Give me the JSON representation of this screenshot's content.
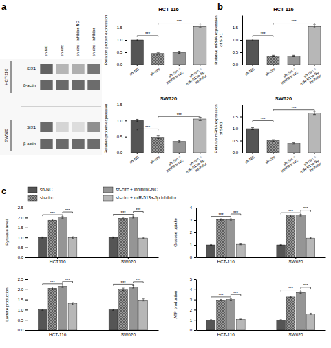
{
  "chart_data": [
    {
      "type": "heatmap",
      "panel": "a",
      "categories": [
        "sh-NC",
        "sh-circ",
        "sh-circ + inhibitor-NC",
        "sh-circ + inhibitor"
      ],
      "series": [
        {
          "group": "HCT-116",
          "name": "SIX1",
          "values": [
            0.82,
            0.38,
            0.42,
            0.72
          ]
        },
        {
          "group": "HCT-116",
          "name": "β-actin",
          "values": [
            0.8,
            0.78,
            0.78,
            0.77
          ]
        },
        {
          "group": "SW620",
          "name": "SIX1",
          "values": [
            0.78,
            0.22,
            0.18,
            0.58
          ]
        },
        {
          "group": "SW620",
          "name": "β-actin",
          "values": [
            0.8,
            0.78,
            0.78,
            0.77
          ]
        }
      ]
    },
    {
      "type": "bar",
      "title": "HCT-116",
      "ylabel": "Relation protein expression",
      "categories": [
        "sh-NC",
        "sh-circ",
        "sh-circ +\ninhibitor-NC",
        "sh-circ +\nmiR-513a-5p\ninhibitor"
      ],
      "values": [
        1.0,
        0.45,
        0.5,
        1.55
      ],
      "errors": [
        0.04,
        0.03,
        0.04,
        0.05
      ],
      "colors": [
        "#555555",
        "#999999",
        "#bbbbbb",
        "#e8e8e8"
      ],
      "ylim": [
        0,
        2.0
      ],
      "yticks": [
        {
          "value": 0.0,
          "label": "0.0"
        },
        0.5,
        {
          "value": 1.0,
          "label": "1.0"
        },
        1.5
      ],
      "annotations": [
        {
          "text": "***",
          "from": 0,
          "to": 1,
          "y": 1.12,
          "height": 0.05
        },
        {
          "text": "***",
          "from": 1,
          "to": 3,
          "y": 1.62,
          "height": 0.06
        }
      ]
    },
    {
      "type": "bar",
      "title": "SW620",
      "ylabel": "Relation protein expression",
      "categories": [
        "sh-NC",
        "sh-circ",
        "sh-circ +\ninhibitor-NC",
        "sh-circ +\nmiR-513a-5p\ninhibitor"
      ],
      "values": [
        1.0,
        0.48,
        0.35,
        1.05
      ],
      "errors": [
        0.04,
        0.04,
        0.03,
        0.05
      ],
      "colors": [
        "#555555",
        "#999999",
        "#bbbbbb",
        "#e8e8e8"
      ],
      "ylim": [
        0,
        1.5
      ],
      "yticks": [
        {
          "value": 0.0,
          "label": "0.0"
        },
        0.5,
        {
          "value": 1.0,
          "label": "1.0"
        },
        1.5
      ],
      "annotations": [
        {
          "text": "***",
          "from": 0,
          "to": 1,
          "y": 0.7,
          "height": 0.04
        },
        {
          "text": "***",
          "from": 1,
          "to": 3,
          "y": 1.08,
          "height": 0.05
        }
      ]
    },
    {
      "type": "bar",
      "panel": "b",
      "title": "HCT-116",
      "ylabel": "Relative mRNA expression\nof SIX1",
      "categories": [
        "sh-NC",
        "sh-circ",
        "sh-circ +\ninhibitor-NC",
        "sh-circ +\nmiR-513a-5p\ninhibitor"
      ],
      "values": [
        1.0,
        0.35,
        0.35,
        1.55
      ],
      "errors": [
        0.04,
        0.03,
        0.03,
        0.06
      ],
      "colors": [
        "#555555",
        "#999999",
        "#bbbbbb",
        "#e8e8e8"
      ],
      "ylim": [
        0,
        2.0
      ],
      "yticks": [
        {
          "value": 0.0,
          "label": "0.0"
        },
        0.5,
        {
          "value": 1.0,
          "label": "1.0"
        },
        1.5
      ],
      "annotations": [
        {
          "text": "***",
          "from": 0,
          "to": 1,
          "y": 1.12,
          "height": 0.05
        },
        {
          "text": "***",
          "from": 1,
          "to": 3,
          "y": 1.62,
          "height": 0.06
        }
      ]
    },
    {
      "type": "bar",
      "title": "SW620",
      "ylabel": "Relative mRNA expression\nof SIX1",
      "categories": [
        "sh-NC",
        "sh-circ",
        "sh-circ +\ninhibitor-NC",
        "sh-circ +\nmiR-513a-5p\ninhibitor"
      ],
      "values": [
        1.0,
        0.5,
        0.38,
        1.65
      ],
      "errors": [
        0.04,
        0.04,
        0.03,
        0.07
      ],
      "colors": [
        "#555555",
        "#999999",
        "#bbbbbb",
        "#e8e8e8"
      ],
      "ylim": [
        0,
        2.0
      ],
      "yticks": [
        {
          "value": 0.0,
          "label": "0.0"
        },
        0.5,
        {
          "value": 1.0,
          "label": "1.0"
        },
        1.5
      ],
      "annotations": [
        {
          "text": "***",
          "from": 0,
          "to": 1,
          "y": 1.28,
          "height": 0.05
        },
        {
          "text": "***",
          "from": 1,
          "to": 3,
          "y": 1.72,
          "height": 0.06
        }
      ]
    },
    {
      "type": "bar",
      "panel": "c",
      "legend": "top",
      "ylabel": "Pyruvate level",
      "categories": [
        "HCT116",
        "SW620"
      ],
      "series": [
        {
          "name": "sh-NC",
          "color": "#555555",
          "values": [
            1.0,
            1.0
          ],
          "errors": [
            0.03,
            0.03
          ]
        },
        {
          "name": "sh-circ",
          "color": "#999999",
          "values": [
            1.87,
            1.97
          ],
          "errors": [
            0.05,
            0.05
          ]
        },
        {
          "name": "sh-circ + inhibitor-NC",
          "color": "#bbbbbb",
          "values": [
            2.02,
            2.03
          ],
          "errors": [
            0.05,
            0.05
          ]
        },
        {
          "name": "sh-circ + miR-513a-5p inhibitor",
          "color": "#e8e8e8",
          "values": [
            1.0,
            0.97
          ],
          "errors": [
            0.04,
            0.04
          ]
        }
      ],
      "ylim": [
        0,
        2.5
      ],
      "yticks": [
        {
          "value": 0.0,
          "label": "0.0"
        },
        0.5,
        {
          "value": 1.0,
          "label": "1.0"
        },
        1.5,
        {
          "value": 2.0,
          "label": "2.0"
        },
        2.5
      ],
      "annotations": [
        {
          "text": "***",
          "category": 0,
          "from": 0,
          "to": 2,
          "y": 2.08,
          "height": 0.07
        },
        {
          "text": "***",
          "category": 0,
          "from": 2,
          "to": 3,
          "y": 2.22,
          "height": 0.07
        },
        {
          "text": "***",
          "category": 1,
          "from": 0,
          "to": 2,
          "y": 2.1,
          "height": 0.07
        },
        {
          "text": "***",
          "category": 1,
          "from": 2,
          "to": 3,
          "y": 2.24,
          "height": 0.07
        }
      ]
    },
    {
      "type": "bar",
      "ylabel": "Glucose uptake",
      "categories": [
        "HCT-116",
        "SW620"
      ],
      "series": [
        {
          "color": "#555555",
          "values": [
            1.0,
            1.0
          ],
          "errors": [
            0.03,
            0.03
          ]
        },
        {
          "color": "#999999",
          "values": [
            3.05,
            3.35
          ],
          "errors": [
            0.06,
            0.07
          ]
        },
        {
          "color": "#bbbbbb",
          "values": [
            3.05,
            3.4
          ],
          "errors": [
            0.06,
            0.07
          ]
        },
        {
          "color": "#e8e8e8",
          "values": [
            1.05,
            1.55
          ],
          "errors": [
            0.04,
            0.06
          ]
        }
      ],
      "ylim": [
        0,
        4.0
      ],
      "yticks": [
        0,
        1,
        2,
        3,
        4
      ],
      "annotations": [
        {
          "text": "***",
          "category": 0,
          "from": 0,
          "to": 2,
          "y": 3.18,
          "height": 0.12
        },
        {
          "text": "***",
          "category": 0,
          "from": 2,
          "to": 3,
          "y": 3.38,
          "height": 0.12
        },
        {
          "text": "***",
          "category": 1,
          "from": 0,
          "to": 2,
          "y": 3.48,
          "height": 0.12
        },
        {
          "text": "***",
          "category": 1,
          "from": 2,
          "to": 3,
          "y": 3.68,
          "height": 0.12
        }
      ]
    },
    {
      "type": "bar",
      "ylabel": "Lactate production",
      "categories": [
        "HCT-116",
        "SW620"
      ],
      "series": [
        {
          "color": "#555555",
          "values": [
            1.0,
            1.0
          ],
          "errors": [
            0.03,
            0.03
          ]
        },
        {
          "color": "#999999",
          "values": [
            2.05,
            2.0
          ],
          "errors": [
            0.06,
            0.06
          ]
        },
        {
          "color": "#bbbbbb",
          "values": [
            2.15,
            2.12
          ],
          "errors": [
            0.06,
            0.06
          ]
        },
        {
          "color": "#e8e8e8",
          "values": [
            1.3,
            1.48
          ],
          "errors": [
            0.05,
            0.05
          ]
        }
      ],
      "ylim": [
        0,
        2.5
      ],
      "yticks": [
        {
          "value": 0.0,
          "label": "0.0"
        },
        0.5,
        {
          "value": 1.0,
          "label": "1.0"
        },
        1.5,
        {
          "value": 2.0,
          "label": "2.0"
        },
        2.5
      ],
      "annotations": [
        {
          "text": "***",
          "category": 0,
          "from": 0,
          "to": 2,
          "y": 2.2,
          "height": 0.07
        },
        {
          "text": "***",
          "category": 0,
          "from": 2,
          "to": 3,
          "y": 2.32,
          "height": 0.07
        },
        {
          "text": "***",
          "category": 1,
          "from": 0,
          "to": 2,
          "y": 2.18,
          "height": 0.07
        },
        {
          "text": "***",
          "category": 1,
          "from": 2,
          "to": 3,
          "y": 2.3,
          "height": 0.07
        }
      ]
    },
    {
      "type": "bar",
      "ylabel": "ATP production",
      "categories": [
        "HCT-116",
        "SW620"
      ],
      "series": [
        {
          "color": "#555555",
          "values": [
            1.0,
            1.0
          ],
          "errors": [
            0.03,
            0.03
          ]
        },
        {
          "color": "#999999",
          "values": [
            2.95,
            3.25
          ],
          "errors": [
            0.06,
            0.07
          ]
        },
        {
          "color": "#bbbbbb",
          "values": [
            3.0,
            3.7
          ],
          "errors": [
            0.06,
            0.08
          ]
        },
        {
          "color": "#e8e8e8",
          "values": [
            1.05,
            1.6
          ],
          "errors": [
            0.04,
            0.06
          ]
        }
      ],
      "ylim": [
        0,
        5.0
      ],
      "yticks": [
        0,
        1,
        2,
        3,
        4,
        5
      ],
      "annotations": [
        {
          "text": "***",
          "category": 0,
          "from": 0,
          "to": 2,
          "y": 3.1,
          "height": 0.15
        },
        {
          "text": "***",
          "category": 0,
          "from": 2,
          "to": 3,
          "y": 3.35,
          "height": 0.15
        },
        {
          "text": "***",
          "category": 1,
          "from": 0,
          "to": 2,
          "y": 3.8,
          "height": 0.15
        },
        {
          "text": "***",
          "category": 1,
          "from": 2,
          "to": 3,
          "y": 4.05,
          "height": 0.15
        }
      ]
    }
  ]
}
